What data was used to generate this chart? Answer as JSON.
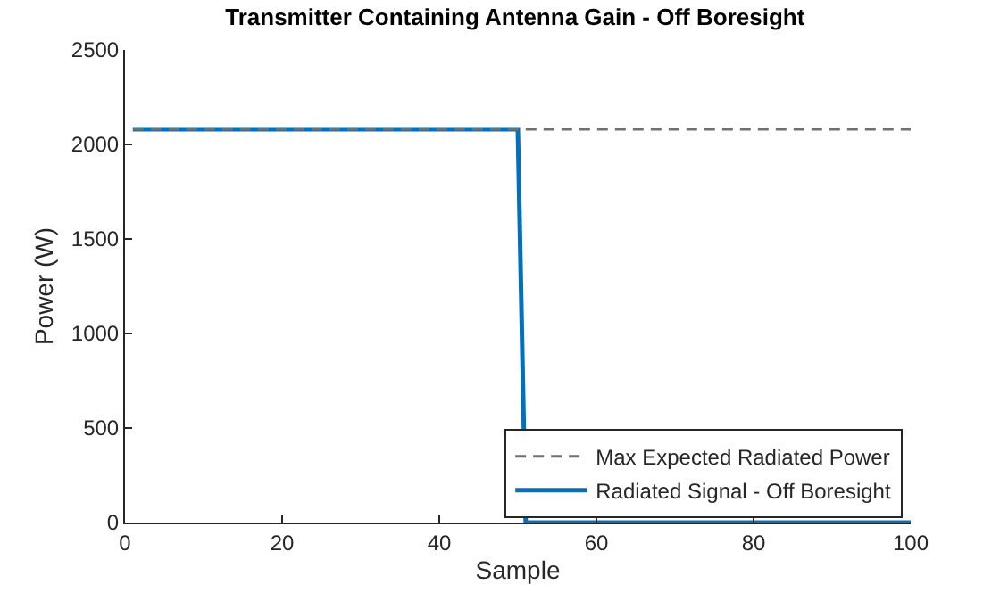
{
  "chart_data": {
    "type": "line",
    "title": "Transmitter Containing Antenna Gain - Off Boresight",
    "xlabel": "Sample",
    "ylabel": "Power (W)",
    "series": [
      {
        "name": "Max Expected Radiated Power",
        "color": "#707070",
        "line_style": "dashed",
        "x": [
          1,
          100
        ],
        "values": [
          2080,
          2080
        ]
      },
      {
        "name": "Radiated Signal - Off Boresight",
        "color": "#0072bd",
        "line_style": "solid",
        "x": [
          1,
          50,
          51,
          100
        ],
        "values": [
          2080,
          2080,
          0,
          0
        ]
      }
    ],
    "xlim": [
      0,
      100
    ],
    "xticks": [
      0,
      20,
      40,
      60,
      80,
      100
    ],
    "ylim": [
      0,
      2500
    ],
    "yticks": [
      0,
      500,
      1000,
      1500,
      2000,
      2500
    ],
    "legend": "bottom right",
    "marker": "none"
  }
}
